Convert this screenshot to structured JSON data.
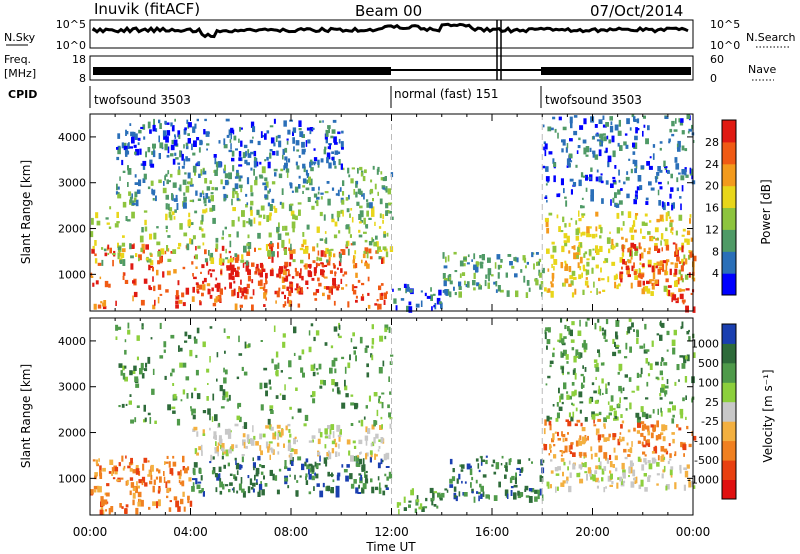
{
  "header": {
    "station": "Inuvik (fitACF)",
    "beam": "Beam 00",
    "date": "07/Oct/2014"
  },
  "noise_panel": {
    "left_label": "N.Sky",
    "left_ticks": [
      "10^5",
      "10^0"
    ],
    "right_label": "N.Search",
    "right_ticks": [
      "10^5",
      "10^0"
    ]
  },
  "freq_panel": {
    "left_label_top": "Freq.",
    "left_label_unit": "[MHz]",
    "left_ticks": [
      "18",
      "8"
    ],
    "right_label": "Nave",
    "right_ticks": [
      "60",
      "0"
    ]
  },
  "cpid_panel": {
    "label": "CPID",
    "segments": [
      {
        "start_hour": 0,
        "text": "twofsound 3503"
      },
      {
        "start_hour": 12,
        "text": "normal (fast) 151"
      },
      {
        "start_hour": 18,
        "text": "twofsound 3503"
      }
    ]
  },
  "time_axis": {
    "label": "Time UT",
    "ticks": [
      "00:00",
      "04:00",
      "08:00",
      "12:00",
      "16:00",
      "20:00",
      "00:00"
    ]
  },
  "chart_data": [
    {
      "type": "heatmap",
      "name": "power",
      "xlabel": "Time UT",
      "ylabel": "Slant Range [km]",
      "xlim": [
        0,
        24
      ],
      "ylim": [
        200,
        4500
      ],
      "yticks": [
        1000,
        2000,
        3000,
        4000
      ],
      "colorbar": {
        "label": "Power [dB]",
        "levels": [
          "4",
          "8",
          "12",
          "16",
          "20",
          "24",
          "28"
        ],
        "colors": [
          "#0000ff",
          "#2a6fb8",
          "#4f9a66",
          "#8dc43e",
          "#e8d61a",
          "#f39a1c",
          "#f05a14",
          "#e01a12"
        ]
      },
      "regions": [
        {
          "t0": 0.0,
          "t1": 11.8,
          "r0": 300,
          "r1": 1700,
          "level": 6
        },
        {
          "t0": 4.0,
          "t1": 10.0,
          "r0": 600,
          "r1": 1300,
          "level": 7
        },
        {
          "t0": 0.0,
          "t1": 12.0,
          "r0": 1300,
          "r1": 2500,
          "level": 3
        },
        {
          "t0": 1.0,
          "t1": 12.0,
          "r0": 2500,
          "r1": 3400,
          "level": 2
        },
        {
          "t0": 1.0,
          "t1": 10.0,
          "r0": 3400,
          "r1": 4400,
          "level": 1
        },
        {
          "t0": 12.0,
          "t1": 14.0,
          "r0": 300,
          "r1": 800,
          "level": 1
        },
        {
          "t0": 14.0,
          "t1": 18.0,
          "r0": 600,
          "r1": 1500,
          "level": 2
        },
        {
          "t0": 18.0,
          "t1": 24.0,
          "r0": 600,
          "r1": 2400,
          "level": 4
        },
        {
          "t0": 21.0,
          "t1": 24.0,
          "r0": 800,
          "r1": 1700,
          "level": 6
        },
        {
          "t0": 23.0,
          "t1": 24.0,
          "r0": 300,
          "r1": 800,
          "level": 7
        },
        {
          "t0": 18.0,
          "t1": 24.0,
          "r0": 2500,
          "r1": 4500,
          "level": 1
        }
      ]
    },
    {
      "type": "heatmap",
      "name": "velocity",
      "xlabel": "Time UT",
      "ylabel": "Slant Range [km]",
      "xlim": [
        0,
        24
      ],
      "ylim": [
        200,
        4500
      ],
      "yticks": [
        1000,
        2000,
        3000,
        4000
      ],
      "colorbar": {
        "label": "Velocity [m s⁻¹]",
        "levels": [
          "1000",
          "500",
          "100",
          "25",
          "-25",
          "-100",
          "-500",
          "-1000"
        ],
        "colors": [
          "#1a3fb0",
          "#2e6b3a",
          "#4f9a4a",
          "#8ccf3c",
          "#c8c8c8",
          "#f3b040",
          "#f08020",
          "#e84010",
          "#e01010"
        ]
      },
      "regions": [
        {
          "t0": 0.0,
          "t1": 4.0,
          "r0": 300,
          "r1": 1500,
          "level": 6
        },
        {
          "t0": 4.0,
          "t1": 12.0,
          "r0": 700,
          "r1": 1500,
          "level": 1
        },
        {
          "t0": 4.0,
          "t1": 12.0,
          "r0": 1500,
          "r1": 2200,
          "level": 4
        },
        {
          "t0": 1.0,
          "t1": 12.0,
          "r0": 2200,
          "r1": 4400,
          "level": 2
        },
        {
          "t0": 12.0,
          "t1": 14.0,
          "r0": 300,
          "r1": 800,
          "level": 2
        },
        {
          "t0": 14.0,
          "t1": 18.0,
          "r0": 600,
          "r1": 1500,
          "level": 1
        },
        {
          "t0": 18.0,
          "t1": 24.0,
          "r0": 800,
          "r1": 1500,
          "level": 4
        },
        {
          "t0": 18.0,
          "t1": 24.0,
          "r0": 1500,
          "r1": 2300,
          "level": 6
        },
        {
          "t0": 18.0,
          "t1": 24.0,
          "r0": 2300,
          "r1": 4500,
          "level": 2
        }
      ]
    }
  ]
}
